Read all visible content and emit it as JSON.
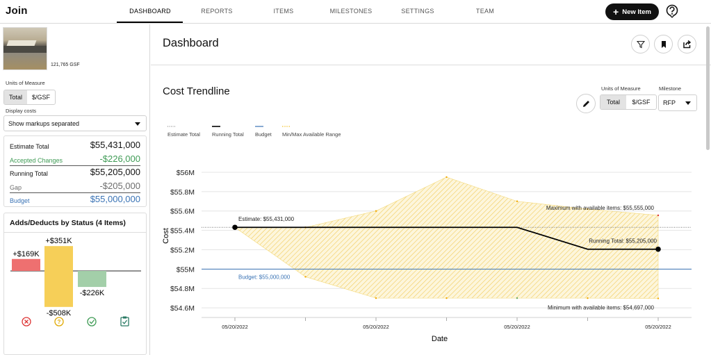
{
  "app": {
    "logo": "Join"
  },
  "nav": {
    "tabs": [
      {
        "label": "DASHBOARD",
        "active": true
      },
      {
        "label": "REPORTS"
      },
      {
        "label": "ITEMS"
      },
      {
        "label": "MILESTONES"
      },
      {
        "label": "SETTINGS"
      },
      {
        "label": "TEAM"
      }
    ],
    "new_item_label": "New Item",
    "help_icon": "question-circle-icon"
  },
  "sidebar": {
    "project_gsf": "121,765 GSF",
    "units_label": "Units of Measure",
    "units_options": [
      "Total",
      "$/GSF"
    ],
    "units_selected": "Total",
    "display_costs_label": "Display costs",
    "display_costs_value": "Show markups separated",
    "summary": {
      "estimate_total": {
        "label": "Estimate Total",
        "value": "$55,431,000"
      },
      "accepted_changes": {
        "label": "Accepted Changes",
        "value": "-$226,000"
      },
      "running_total": {
        "label": "Running Total",
        "value": "$55,205,000"
      },
      "gap": {
        "label": "Gap",
        "value": "-$205,000"
      },
      "budget": {
        "label": "Budget",
        "value": "$55,000,000"
      }
    },
    "adds_deducts": {
      "title": "Adds/Deducts by Status (4 Items)",
      "bars": [
        {
          "status": "rejected",
          "add": "+$169K",
          "deduct": "",
          "add_value": 169,
          "deduct_value": 0,
          "color": "#ee7070",
          "icon": "x-circle-icon"
        },
        {
          "status": "pending",
          "add": "+$351K",
          "deduct": "-$508K",
          "add_value": 351,
          "deduct_value": 508,
          "color": "#f6cf58",
          "icon": "question-circle-icon"
        },
        {
          "status": "accepted",
          "add": "",
          "deduct": "-$226K",
          "add_value": 0,
          "deduct_value": 226,
          "color": "#a3cfa9",
          "icon": "check-circle-icon"
        },
        {
          "status": "incorporated",
          "add": "",
          "deduct": "",
          "add_value": 0,
          "deduct_value": 0,
          "color": "#2a7a64",
          "icon": "clipboard-check-icon"
        }
      ]
    }
  },
  "main": {
    "title": "Dashboard",
    "header_icons": [
      "filter-icon",
      "bookmark-icon",
      "share-icon"
    ],
    "trend": {
      "title": "Cost Trendline",
      "edit_icon": "pencil-icon",
      "units_label": "Units of Measure",
      "units_options": [
        "Total",
        "$/GSF"
      ],
      "units_selected": "Total",
      "milestone_label": "Milestone",
      "milestone_value": "RFP",
      "legend": [
        "Estimate Total",
        "Running Total",
        "Budget",
        "Min/Max Available Range"
      ],
      "annotations": {
        "estimate": "Estimate: $55,431,000",
        "running": "Running Total: $55,205,000",
        "budget": "Budget: $55,000,000",
        "max": "Maximum with available items: $55,555,000",
        "min": "Minimum with available items: $54,697,000"
      }
    }
  },
  "chart_data": {
    "type": "line",
    "xlabel": "Date",
    "ylabel": "Cost",
    "x_ticks": [
      "05/20/2022",
      "05/20/2022",
      "05/20/2022",
      "05/20/2022"
    ],
    "y_ticks": [
      "$54.6M",
      "$54.8M",
      "$55M",
      "$55.2M",
      "$55.4M",
      "$55.6M",
      "$55.8M",
      "$56M"
    ],
    "ylim": [
      54.5,
      56.1
    ],
    "grid": true,
    "legend_position": "top-left",
    "x_positions": [
      0,
      1,
      2,
      3,
      4,
      5,
      6
    ],
    "series": [
      {
        "name": "Estimate Total",
        "values": [
          55.431,
          55.431,
          55.431,
          55.431,
          55.431,
          55.431,
          55.431
        ],
        "color": "#666666",
        "style": "dotted"
      },
      {
        "name": "Running Total",
        "values": [
          55.431,
          55.431,
          55.431,
          55.431,
          55.431,
          55.205,
          55.205
        ],
        "color": "#000000",
        "style": "solid"
      },
      {
        "name": "Budget",
        "values": [
          55.0,
          55.0,
          55.0,
          55.0,
          55.0,
          55.0,
          55.0
        ],
        "color": "#3a73b5",
        "style": "solid"
      },
      {
        "name": "Min/Max Available Range",
        "max": [
          55.431,
          55.431,
          55.6,
          55.95,
          55.7,
          55.62,
          55.555
        ],
        "min": [
          55.431,
          54.92,
          54.7,
          54.7,
          54.7,
          54.7,
          54.697
        ],
        "color": "#f4c430",
        "style": "hatched"
      }
    ]
  }
}
